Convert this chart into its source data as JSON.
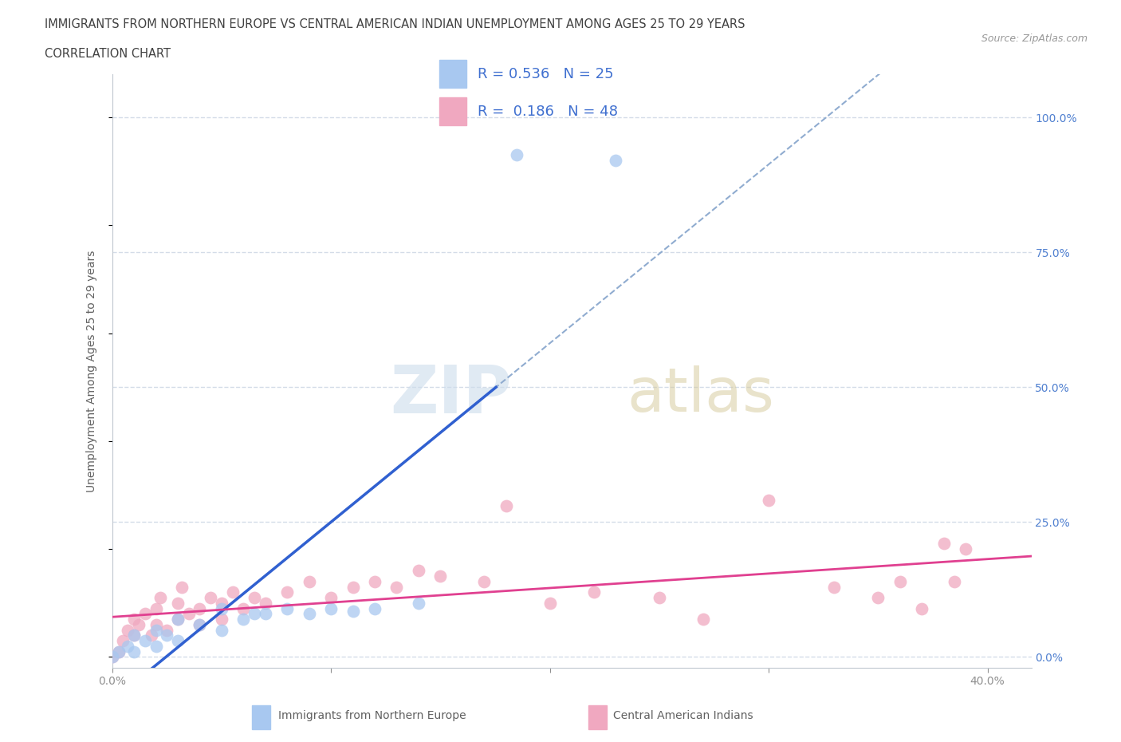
{
  "title_line1": "IMMIGRANTS FROM NORTHERN EUROPE VS CENTRAL AMERICAN INDIAN UNEMPLOYMENT AMONG AGES 25 TO 29 YEARS",
  "title_line2": "CORRELATION CHART",
  "source": "Source: ZipAtlas.com",
  "ylabel": "Unemployment Among Ages 25 to 29 years",
  "xlim": [
    0.0,
    0.42
  ],
  "ylim": [
    -0.02,
    1.08
  ],
  "xtick_vals": [
    0.0,
    0.1,
    0.2,
    0.3,
    0.4
  ],
  "xticklabels": [
    "0.0%",
    "",
    "",
    "",
    "40.0%"
  ],
  "ytick_vals": [
    0.0,
    0.25,
    0.5,
    0.75,
    1.0
  ],
  "yticklabels_right": [
    "0.0%",
    "25.0%",
    "50.0%",
    "75.0%",
    "100.0%"
  ],
  "blue_R": 0.536,
  "blue_N": 25,
  "pink_R": 0.186,
  "pink_N": 48,
  "blue_scatter_color": "#a8c8f0",
  "pink_scatter_color": "#f0a8c0",
  "blue_line_color": "#3060d0",
  "pink_line_color": "#e04090",
  "dashed_line_color": "#90acd0",
  "grid_color": "#d4dce8",
  "bg_color": "#ffffff",
  "axis_label_color": "#606060",
  "tick_color": "#909090",
  "right_tick_color": "#5080d0",
  "legend_bg": "#eef2f8",
  "legend_text_color": "#4070d0",
  "blue_scatter_x": [
    0.0,
    0.003,
    0.007,
    0.01,
    0.01,
    0.015,
    0.02,
    0.02,
    0.025,
    0.03,
    0.03,
    0.04,
    0.05,
    0.05,
    0.06,
    0.065,
    0.07,
    0.08,
    0.09,
    0.1,
    0.11,
    0.12,
    0.14,
    0.185,
    0.23
  ],
  "blue_scatter_y": [
    0.0,
    0.01,
    0.02,
    0.01,
    0.04,
    0.03,
    0.02,
    0.05,
    0.04,
    0.03,
    0.07,
    0.06,
    0.05,
    0.09,
    0.07,
    0.08,
    0.08,
    0.09,
    0.08,
    0.09,
    0.085,
    0.09,
    0.1,
    0.93,
    0.92
  ],
  "pink_scatter_x": [
    0.0,
    0.003,
    0.005,
    0.007,
    0.01,
    0.01,
    0.012,
    0.015,
    0.018,
    0.02,
    0.02,
    0.022,
    0.025,
    0.03,
    0.03,
    0.032,
    0.035,
    0.04,
    0.04,
    0.045,
    0.05,
    0.05,
    0.055,
    0.06,
    0.065,
    0.07,
    0.08,
    0.09,
    0.1,
    0.11,
    0.12,
    0.13,
    0.14,
    0.15,
    0.17,
    0.18,
    0.2,
    0.22,
    0.25,
    0.27,
    0.3,
    0.33,
    0.35,
    0.36,
    0.37,
    0.38,
    0.385,
    0.39
  ],
  "pink_scatter_y": [
    0.0,
    0.01,
    0.03,
    0.05,
    0.04,
    0.07,
    0.06,
    0.08,
    0.04,
    0.06,
    0.09,
    0.11,
    0.05,
    0.07,
    0.1,
    0.13,
    0.08,
    0.06,
    0.09,
    0.11,
    0.07,
    0.1,
    0.12,
    0.09,
    0.11,
    0.1,
    0.12,
    0.14,
    0.11,
    0.13,
    0.14,
    0.13,
    0.16,
    0.15,
    0.14,
    0.28,
    0.1,
    0.12,
    0.11,
    0.07,
    0.29,
    0.13,
    0.11,
    0.14,
    0.09,
    0.21,
    0.14,
    0.2
  ],
  "bottom_legend_blue_label": "Immigrants from Northern Europe",
  "bottom_legend_pink_label": "Central American Indians"
}
